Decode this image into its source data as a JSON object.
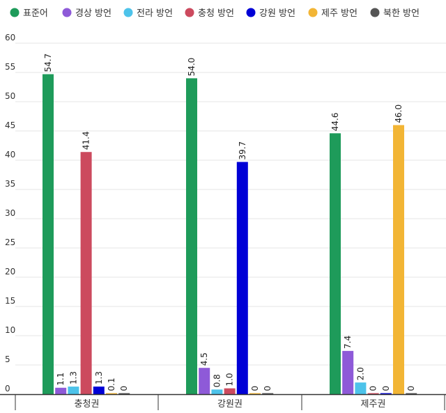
{
  "chart_data": {
    "type": "bar",
    "title": "",
    "xlabel": "",
    "ylabel": "",
    "ylim": [
      0,
      60
    ],
    "yticks": [
      0,
      5,
      10,
      15,
      20,
      25,
      30,
      35,
      40,
      45,
      50,
      55,
      60
    ],
    "grid": true,
    "legend_position": "top",
    "categories": [
      "충청권",
      "강원권",
      "제주권"
    ],
    "series": [
      {
        "name": "표준어",
        "color": "#1e9b5a",
        "values": [
          54.7,
          54.0,
          44.6
        ],
        "labels": [
          "54.7",
          "54.0",
          "44.6"
        ]
      },
      {
        "name": "경상 방언",
        "color": "#8e5ad8",
        "values": [
          1.1,
          4.5,
          7.4
        ],
        "labels": [
          "1.1",
          "4.5",
          "7.4"
        ]
      },
      {
        "name": "전라 방언",
        "color": "#4dc3ea",
        "values": [
          1.3,
          0.8,
          2.0
        ],
        "labels": [
          "1.3",
          "0.8",
          "2.0"
        ]
      },
      {
        "name": "충청 방언",
        "color": "#cc4a5e",
        "values": [
          41.4,
          1.0,
          0
        ],
        "labels": [
          "41.4",
          "1.0",
          "0"
        ]
      },
      {
        "name": "강원 방언",
        "color": "#0000d6",
        "values": [
          1.3,
          39.7,
          0
        ],
        "labels": [
          "1.3",
          "39.7",
          "0"
        ]
      },
      {
        "name": "제주 방언",
        "color": "#f2b535",
        "values": [
          0.1,
          0,
          46.0
        ],
        "labels": [
          "0.1",
          "0",
          "46.0"
        ]
      },
      {
        "name": "북한 방언",
        "color": "#555555",
        "values": [
          0,
          0,
          0
        ],
        "labels": [
          "0",
          "0",
          "0"
        ]
      }
    ]
  }
}
